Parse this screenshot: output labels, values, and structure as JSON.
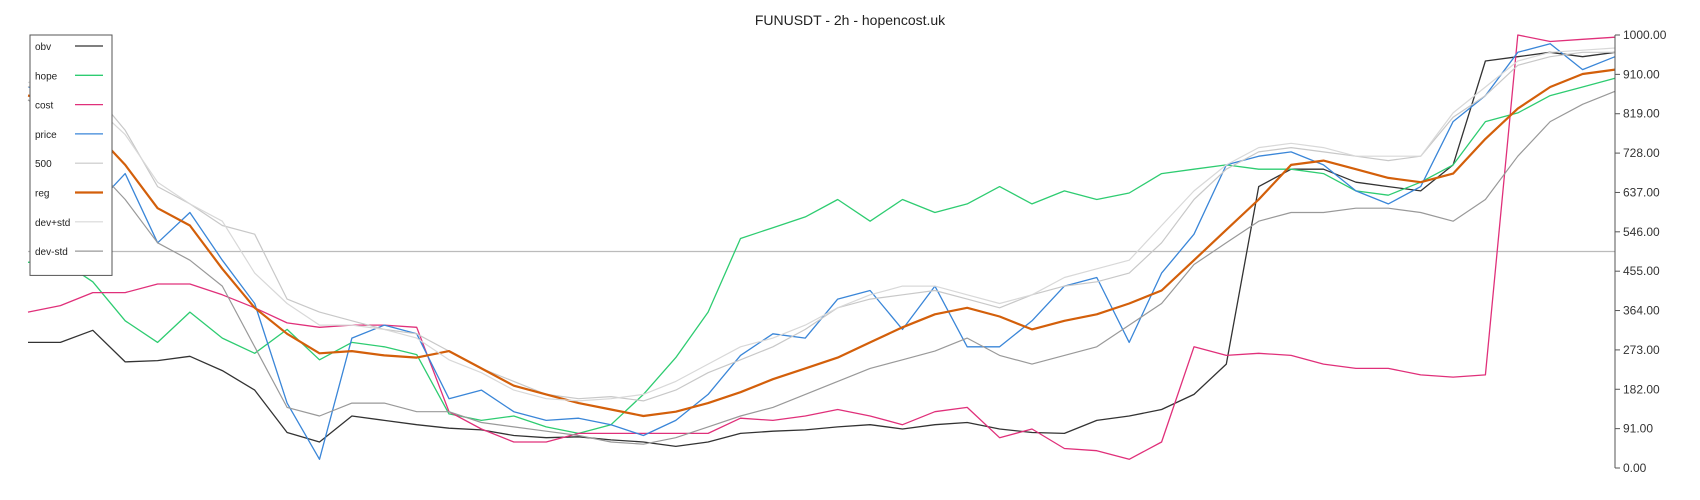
{
  "chart_data": {
    "type": "line",
    "title": "FUNUSDT - 2h - hopencost.uk",
    "xlabel": "",
    "ylabel": "",
    "ylim": [
      0,
      1000
    ],
    "yticks": [
      "0.00",
      "91.00",
      "182.00",
      "273.00",
      "364.00",
      "455.00",
      "546.00",
      "637.00",
      "728.00",
      "819.00",
      "910.00",
      "1000.00"
    ],
    "grid": false,
    "legend_position": "top-left",
    "hline": {
      "y": 500,
      "color": "#bbbbbb"
    },
    "x_count": 50,
    "series": [
      {
        "name": "obv",
        "color": "#333333",
        "width": 1.3,
        "values": [
          290,
          290,
          318,
          245,
          248,
          258,
          225,
          180,
          82,
          60,
          120,
          110,
          100,
          92,
          88,
          75,
          70,
          72,
          65,
          60,
          50,
          60,
          80,
          85,
          88,
          95,
          100,
          90,
          100,
          105,
          90,
          82,
          80,
          110,
          120,
          135,
          170,
          240,
          650,
          690,
          690,
          660,
          650,
          640,
          700,
          940,
          950,
          960,
          950,
          960
        ]
      },
      {
        "name": "hope",
        "color": "#2ecc71",
        "width": 1.3,
        "values": [
          475,
          480,
          430,
          340,
          290,
          360,
          300,
          265,
          320,
          250,
          290,
          280,
          262,
          125,
          110,
          120,
          95,
          80,
          100,
          170,
          255,
          360,
          530,
          555,
          580,
          620,
          570,
          620,
          590,
          610,
          650,
          610,
          640,
          620,
          635,
          680,
          690,
          700,
          690,
          690,
          680,
          640,
          630,
          660,
          700,
          800,
          820,
          860,
          880,
          900
        ]
      },
      {
        "name": "cost",
        "color": "#e0307a",
        "width": 1.3,
        "values": [
          360,
          375,
          405,
          405,
          425,
          425,
          400,
          370,
          335,
          325,
          330,
          330,
          325,
          130,
          90,
          60,
          60,
          80,
          80,
          80,
          80,
          80,
          115,
          110,
          120,
          135,
          120,
          100,
          130,
          140,
          70,
          90,
          45,
          40,
          20,
          60,
          280,
          260,
          265,
          260,
          240,
          230,
          230,
          215,
          210,
          215,
          1000,
          985,
          990,
          995
        ]
      },
      {
        "name": "price",
        "color": "#3a86d8",
        "width": 1.3,
        "values": [
          880,
          870,
          600,
          680,
          520,
          590,
          480,
          380,
          150,
          20,
          300,
          330,
          310,
          160,
          180,
          130,
          110,
          115,
          100,
          75,
          110,
          170,
          260,
          310,
          300,
          390,
          410,
          320,
          420,
          280,
          280,
          340,
          420,
          440,
          290,
          450,
          540,
          700,
          720,
          730,
          700,
          640,
          610,
          650,
          800,
          860,
          960,
          980,
          920,
          950
        ]
      },
      {
        "name": "500",
        "color": "#c8c8c8",
        "width": 1.2,
        "values": [
          880,
          915,
          870,
          780,
          650,
          610,
          560,
          540,
          390,
          360,
          340,
          320,
          310,
          270,
          230,
          200,
          170,
          160,
          165,
          155,
          180,
          220,
          250,
          280,
          320,
          370,
          390,
          400,
          410,
          390,
          370,
          400,
          420,
          430,
          450,
          520,
          620,
          690,
          730,
          740,
          730,
          720,
          710,
          720,
          810,
          860,
          930,
          950,
          960,
          960
        ]
      },
      {
        "name": "reg",
        "color": "#d35f0a",
        "width": 2.2,
        "values": [
          860,
          850,
          780,
          700,
          600,
          560,
          460,
          370,
          310,
          265,
          270,
          260,
          255,
          270,
          230,
          190,
          170,
          150,
          135,
          120,
          130,
          150,
          175,
          205,
          230,
          255,
          290,
          325,
          355,
          370,
          350,
          320,
          340,
          355,
          380,
          410,
          480,
          550,
          620,
          700,
          710,
          690,
          670,
          660,
          680,
          760,
          830,
          880,
          910,
          920
        ]
      },
      {
        "name": "dev+std",
        "color": "#d8d8d8",
        "width": 1.2,
        "values": [
          890,
          910,
          840,
          770,
          660,
          610,
          570,
          450,
          380,
          330,
          330,
          320,
          300,
          250,
          220,
          180,
          160,
          155,
          160,
          170,
          200,
          240,
          280,
          300,
          330,
          370,
          400,
          420,
          420,
          400,
          380,
          400,
          440,
          460,
          480,
          560,
          640,
          700,
          740,
          750,
          740,
          720,
          720,
          720,
          820,
          880,
          940,
          960,
          965,
          970
        ]
      },
      {
        "name": "dev-std",
        "color": "#999999",
        "width": 1.2,
        "values": [
          850,
          800,
          700,
          620,
          520,
          480,
          420,
          280,
          140,
          120,
          150,
          150,
          130,
          130,
          105,
          95,
          85,
          75,
          60,
          55,
          70,
          95,
          120,
          140,
          170,
          200,
          230,
          250,
          270,
          300,
          260,
          240,
          260,
          280,
          330,
          380,
          470,
          520,
          570,
          590,
          590,
          600,
          600,
          590,
          570,
          620,
          720,
          800,
          840,
          870
        ]
      }
    ]
  }
}
